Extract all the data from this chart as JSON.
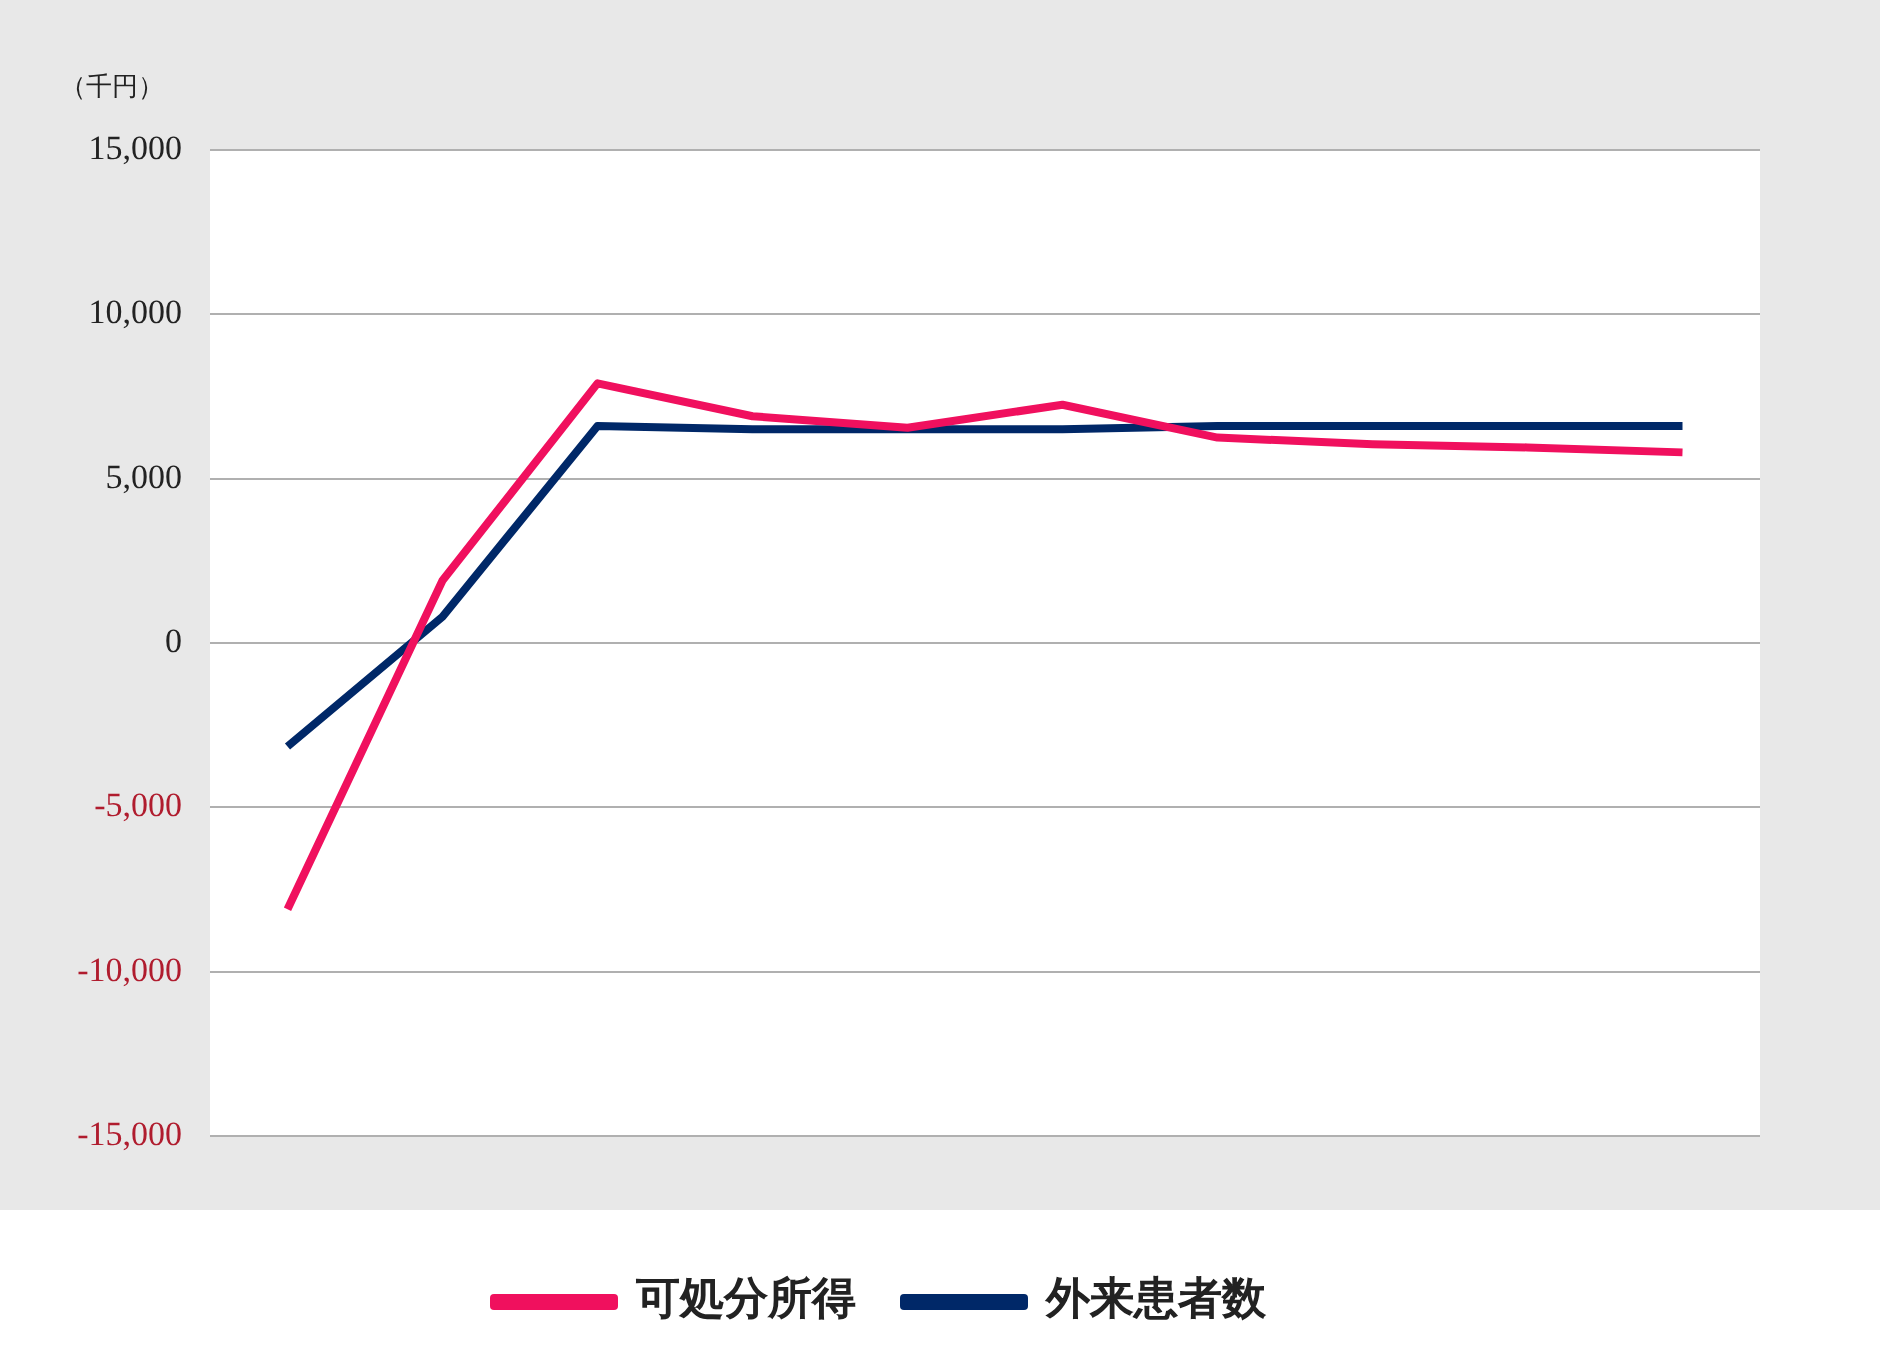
{
  "chart_data": {
    "type": "line",
    "ylabel": "（千円）",
    "categories": [
      null,
      null,
      null,
      null,
      null,
      null,
      null,
      null,
      null,
      null
    ],
    "series": [
      {
        "name": "可処分所得",
        "color": "#f0105e",
        "values": [
          -8100,
          1900,
          7900,
          6900,
          6550,
          7250,
          6250,
          6050,
          5950,
          5800
        ]
      },
      {
        "name": "外来患者数",
        "color": "#002868",
        "values": [
          -3150,
          800,
          6600,
          6500,
          6500,
          6500,
          6600,
          6600,
          6600,
          6600
        ]
      }
    ],
    "ylim": [
      -15000,
      15000
    ],
    "yticks": [
      {
        "value": -15000,
        "label": "-15,000"
      },
      {
        "value": -10000,
        "label": "-10,000"
      },
      {
        "value": -5000,
        "label": "-5,000"
      },
      0,
      {
        "value": 5000,
        "label": "5,000"
      },
      {
        "value": 10000,
        "label": "10,000"
      },
      {
        "value": 15000,
        "label": "15,000"
      }
    ],
    "grid": "y",
    "legend": "bottom",
    "marker": "none",
    "line_style": "solid"
  }
}
